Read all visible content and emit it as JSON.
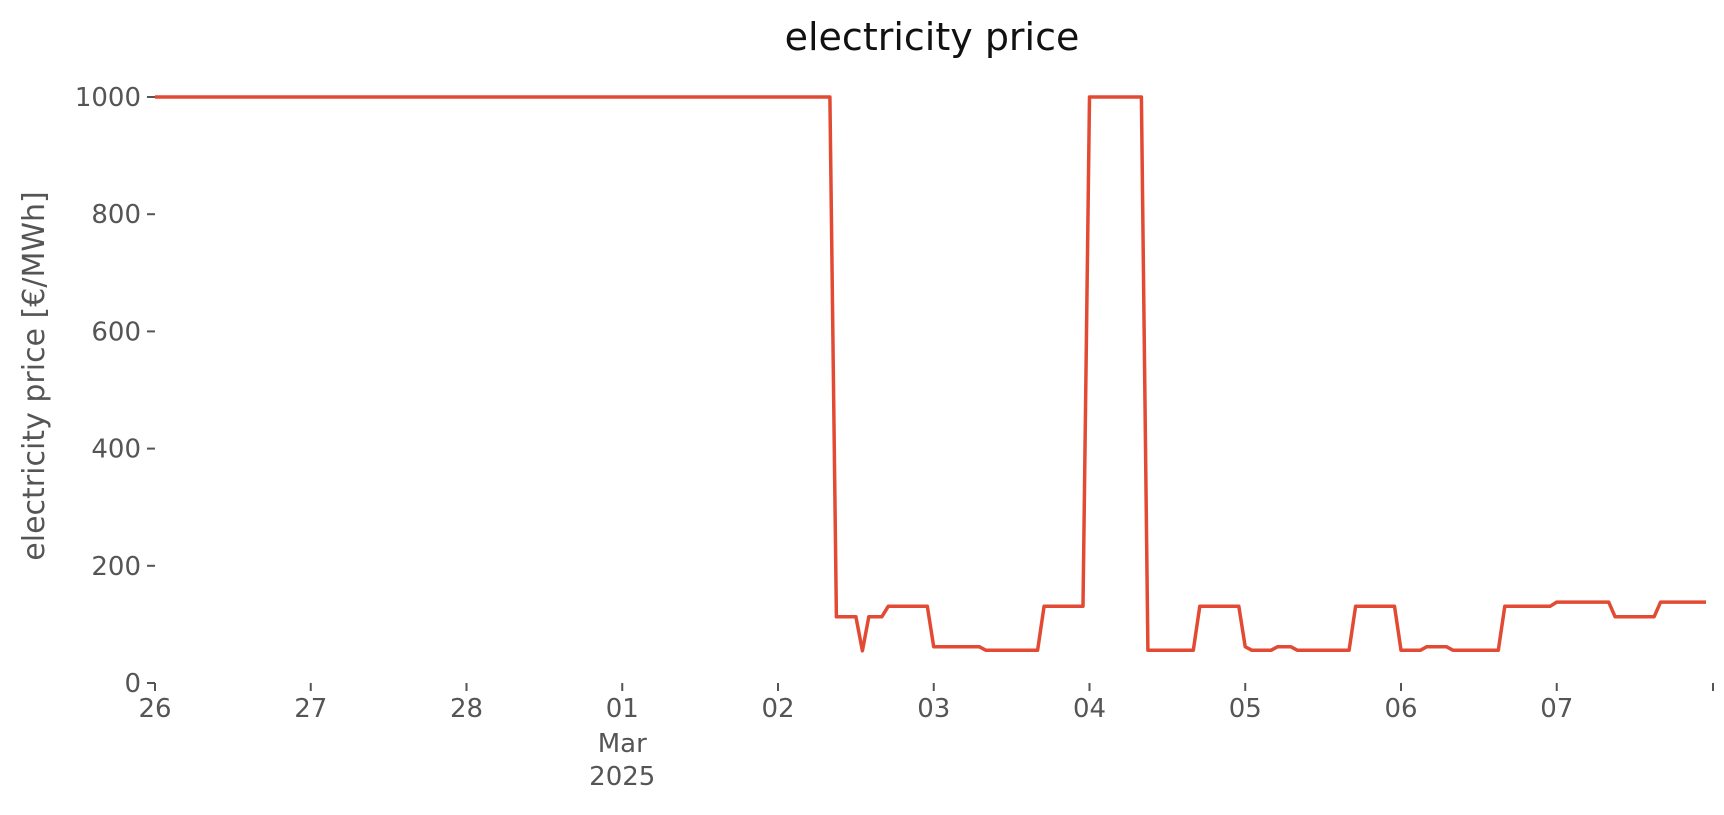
{
  "chart_data": {
    "type": "line",
    "title": "electricity price",
    "xlabel": "",
    "ylabel": "electricity price [€/MWh]",
    "ylim": [
      0,
      1000
    ],
    "xlim": [
      "2025-02-26T00:00",
      "2025-03-07T23:00"
    ],
    "grid": false,
    "y_ticks": [
      0,
      200,
      400,
      600,
      800,
      1000
    ],
    "x_ticks": [
      {
        "at": "2025-02-26T00:00",
        "label": "26",
        "sublabel": ""
      },
      {
        "at": "2025-02-27T00:00",
        "label": "27",
        "sublabel": ""
      },
      {
        "at": "2025-02-28T00:00",
        "label": "28",
        "sublabel": ""
      },
      {
        "at": "2025-03-01T00:00",
        "label": "01",
        "sublabel": "Mar\n2025"
      },
      {
        "at": "2025-03-02T00:00",
        "label": "02",
        "sublabel": ""
      },
      {
        "at": "2025-03-03T00:00",
        "label": "03",
        "sublabel": ""
      },
      {
        "at": "2025-03-04T00:00",
        "label": "04",
        "sublabel": ""
      },
      {
        "at": "2025-03-05T00:00",
        "label": "05",
        "sublabel": ""
      },
      {
        "at": "2025-03-06T00:00",
        "label": "06",
        "sublabel": ""
      },
      {
        "at": "2025-03-07T00:00",
        "label": "07",
        "sublabel": ""
      }
    ],
    "series": [
      {
        "color": "#e24a33",
        "points": [
          [
            "2025-02-26T00:00",
            1000
          ],
          [
            "2025-03-02T08:00",
            1000
          ],
          [
            "2025-03-02T09:00",
            113
          ],
          [
            "2025-03-02T12:00",
            113
          ],
          [
            "2025-03-02T13:00",
            55
          ],
          [
            "2025-03-02T14:00",
            113
          ],
          [
            "2025-03-02T16:00",
            113
          ],
          [
            "2025-03-02T17:00",
            131
          ],
          [
            "2025-03-02T23:00",
            131
          ],
          [
            "2025-03-03T00:00",
            62
          ],
          [
            "2025-03-03T07:00",
            62
          ],
          [
            "2025-03-03T08:00",
            56
          ],
          [
            "2025-03-03T16:00",
            56
          ],
          [
            "2025-03-03T17:00",
            131
          ],
          [
            "2025-03-03T23:00",
            131
          ],
          [
            "2025-03-04T00:00",
            1000
          ],
          [
            "2025-03-04T08:00",
            1000
          ],
          [
            "2025-03-04T09:00",
            56
          ],
          [
            "2025-03-04T16:00",
            56
          ],
          [
            "2025-03-04T17:00",
            131
          ],
          [
            "2025-03-04T23:00",
            131
          ],
          [
            "2025-03-05T00:00",
            62
          ],
          [
            "2025-03-05T01:00",
            56
          ],
          [
            "2025-03-05T04:00",
            56
          ],
          [
            "2025-03-05T05:00",
            62
          ],
          [
            "2025-03-05T07:00",
            62
          ],
          [
            "2025-03-05T08:00",
            56
          ],
          [
            "2025-03-05T16:00",
            56
          ],
          [
            "2025-03-05T17:00",
            131
          ],
          [
            "2025-03-05T23:00",
            131
          ],
          [
            "2025-03-06T00:00",
            56
          ],
          [
            "2025-03-06T03:00",
            56
          ],
          [
            "2025-03-06T04:00",
            62
          ],
          [
            "2025-03-06T07:00",
            62
          ],
          [
            "2025-03-06T08:00",
            56
          ],
          [
            "2025-03-06T15:00",
            56
          ],
          [
            "2025-03-06T16:00",
            131
          ],
          [
            "2025-03-06T23:00",
            131
          ],
          [
            "2025-03-07T00:00",
            138
          ],
          [
            "2025-03-07T08:00",
            138
          ],
          [
            "2025-03-07T09:00",
            113
          ],
          [
            "2025-03-07T15:00",
            113
          ],
          [
            "2025-03-07T16:00",
            138
          ],
          [
            "2025-03-07T23:00",
            138
          ]
        ]
      }
    ]
  }
}
